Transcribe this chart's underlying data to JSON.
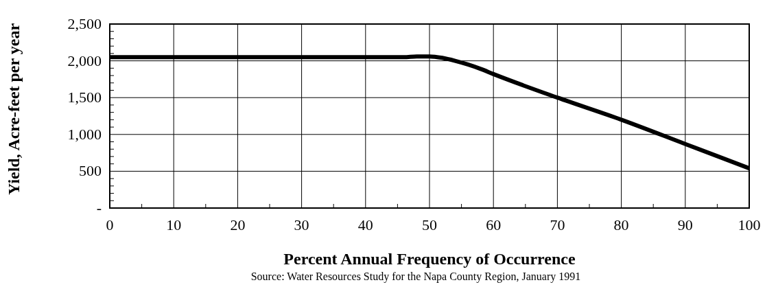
{
  "chart_data": {
    "type": "line",
    "xlabel": "Percent Annual Frequency of Occurrence",
    "ylabel": "Yield, Acre-feet per year",
    "annotations": [
      "Source: Water Resources Study for the Napa County Region, January 1991"
    ],
    "x": [
      0,
      10,
      20,
      30,
      40,
      46,
      48,
      50,
      52,
      54,
      56,
      58,
      60,
      70,
      80,
      90,
      100
    ],
    "series": [
      {
        "color": "#000000",
        "values": [
          2050,
          2050,
          2050,
          2050,
          2050,
          2050,
          2060,
          2060,
          2040,
          2000,
          1950,
          1890,
          1820,
          1500,
          1200,
          870,
          540
        ]
      }
    ],
    "xlim": [
      0,
      100
    ],
    "xticks": [
      0,
      10,
      20,
      30,
      40,
      50,
      60,
      70,
      80,
      90,
      100
    ],
    "ylim": [
      0,
      2500
    ],
    "yticks": [
      {
        "value": 0,
        "label": "-"
      },
      {
        "value": 500,
        "label": "500"
      },
      {
        "value": 1000,
        "label": "1,000"
      },
      {
        "value": 1500,
        "label": "1,500"
      },
      {
        "value": 2000,
        "label": "2,000"
      },
      {
        "value": 2500,
        "label": "2,500"
      }
    ],
    "grid": true,
    "marker": "none",
    "line_style": "solid"
  }
}
